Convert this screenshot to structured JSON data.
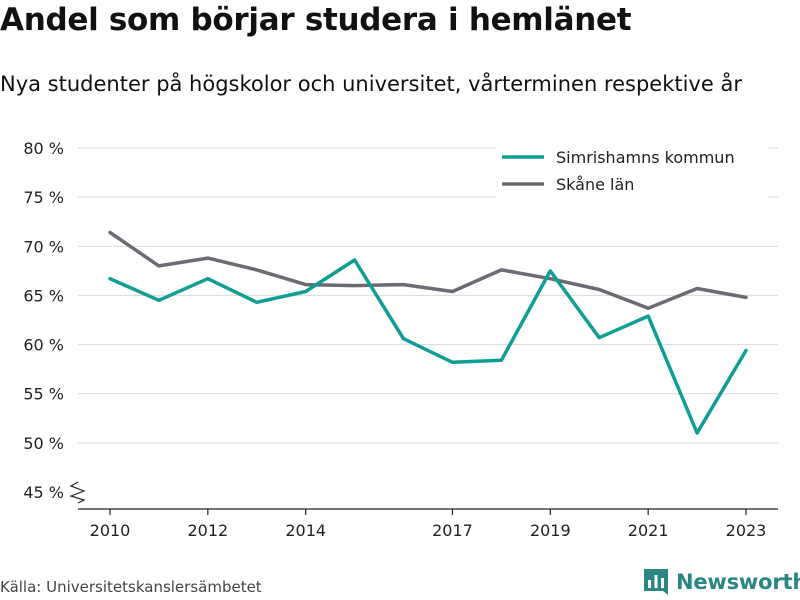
{
  "header": {
    "title": "Andel som börjar studera i hemlänet",
    "subtitle": "Nya studenter på högskolor och universitet, vårterminen respektive år"
  },
  "footer": {
    "source": "Källa: Universitetskanslersämbetet",
    "brand": "Newsworthy",
    "brand_color": "#2a8585"
  },
  "chart_data": {
    "type": "line",
    "title": "Andel som börjar studera i hemlänet",
    "subtitle": "Nya studenter på högskolor och universitet, vårterminen respektive år",
    "xlabel": "",
    "ylabel": "",
    "x": [
      2010,
      2011,
      2012,
      2013,
      2014,
      2015,
      2016,
      2017,
      2018,
      2019,
      2020,
      2021,
      2022,
      2023
    ],
    "xticks": [
      2010,
      2012,
      2014,
      2017,
      2019,
      2021,
      2023
    ],
    "xtick_labels": [
      "2010",
      "2012",
      "2014",
      "2017",
      "2019",
      "2021",
      "2023"
    ],
    "ylim": [
      45,
      80
    ],
    "yticks": [
      45,
      50,
      55,
      60,
      65,
      70,
      75,
      80
    ],
    "ytick_labels": [
      "45 %",
      "50 %",
      "55 %",
      "60 %",
      "65 %",
      "70 %",
      "75 %",
      "80 %"
    ],
    "grid": true,
    "axis_break": true,
    "legend_position": "top-right",
    "series": [
      {
        "name": "Simrishamns kommun",
        "color": "#0e9e95",
        "values": [
          66.7,
          64.5,
          66.7,
          64.3,
          65.4,
          68.6,
          60.6,
          58.2,
          58.4,
          67.5,
          60.7,
          62.9,
          51.0,
          59.4
        ]
      },
      {
        "name": "Skåne län",
        "color": "#6b6b73",
        "values": [
          71.4,
          68.0,
          68.8,
          67.6,
          66.1,
          66.0,
          66.1,
          65.4,
          67.6,
          66.7,
          65.6,
          63.7,
          65.7,
          64.8
        ]
      }
    ]
  }
}
